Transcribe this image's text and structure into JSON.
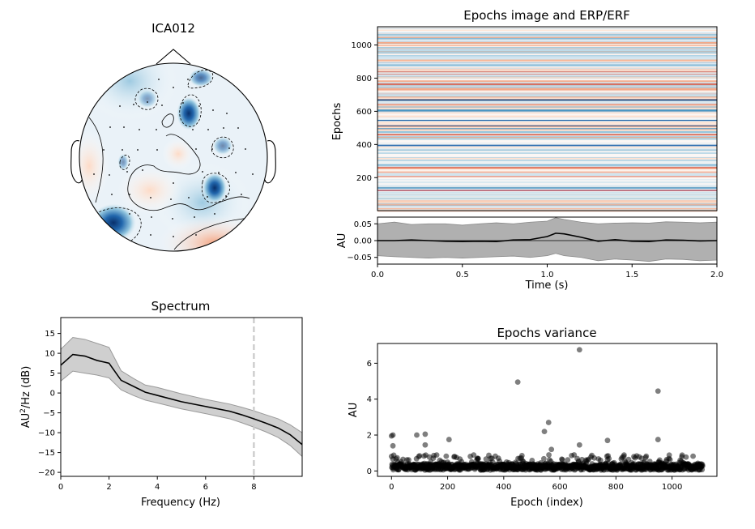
{
  "figure": {
    "topomap": {
      "title": "ICA012"
    },
    "epochs_image": {
      "title": "Epochs image and ERP/ERF",
      "ylabel": "Epochs"
    },
    "erp": {
      "ylabel": "AU",
      "xlabel": "Time (s)"
    },
    "spectrum": {
      "title": "Spectrum",
      "xlabel": "Frequency (Hz)",
      "ylabel_prefix": "AU",
      "ylabel_sup": "2",
      "ylabel_suffix": "/Hz (dB)"
    },
    "variance": {
      "title": "Epochs variance",
      "xlabel": "Epoch (index)",
      "ylabel": "AU"
    }
  },
  "colors": {
    "positive": "#d6604d",
    "negative": "#2166ac",
    "mean_line": "#000000",
    "band": "#b0b0b0",
    "marker": "#000000",
    "vline": "#c8c8c8"
  },
  "chart_data": [
    {
      "type": "heatmap",
      "name": "epochs-image",
      "title": "Epochs image and ERP/ERF",
      "ylabel": "Epochs",
      "ylim": [
        1,
        1110
      ],
      "yticks": [
        200,
        400,
        600,
        800,
        1000
      ],
      "colormap": "RdBu_r"
    },
    {
      "type": "line",
      "name": "erp",
      "xlabel": "Time (s)",
      "ylabel": "AU",
      "xlim": [
        0,
        2
      ],
      "ylim": [
        -0.07,
        0.07
      ],
      "xticks": [
        0.0,
        0.5,
        1.0,
        1.5,
        2.0
      ],
      "yticks": [
        0.05,
        0.0,
        -0.05
      ],
      "x": [
        0.0,
        0.1,
        0.2,
        0.3,
        0.4,
        0.5,
        0.6,
        0.7,
        0.8,
        0.9,
        1.0,
        1.05,
        1.1,
        1.2,
        1.3,
        1.4,
        1.5,
        1.6,
        1.7,
        1.8,
        1.9,
        2.0
      ],
      "mean": [
        0.0,
        0.0,
        0.002,
        0.0,
        -0.002,
        -0.003,
        -0.002,
        -0.003,
        0.002,
        0.003,
        0.012,
        0.022,
        0.02,
        0.01,
        -0.002,
        0.003,
        -0.002,
        -0.003,
        0.002,
        0.001,
        -0.001,
        0.0
      ],
      "upper": [
        0.05,
        0.055,
        0.048,
        0.05,
        0.05,
        0.046,
        0.05,
        0.053,
        0.05,
        0.055,
        0.058,
        0.068,
        0.063,
        0.055,
        0.05,
        0.052,
        0.053,
        0.052,
        0.056,
        0.055,
        0.053,
        0.055
      ],
      "lower": [
        -0.045,
        -0.048,
        -0.05,
        -0.052,
        -0.05,
        -0.052,
        -0.05,
        -0.048,
        -0.046,
        -0.05,
        -0.045,
        -0.038,
        -0.045,
        -0.05,
        -0.06,
        -0.055,
        -0.058,
        -0.062,
        -0.055,
        -0.056,
        -0.06,
        -0.058
      ]
    },
    {
      "type": "line",
      "name": "spectrum",
      "title": "Spectrum",
      "xlabel": "Frequency (Hz)",
      "ylabel": "AU²/Hz (dB)",
      "xlim": [
        0,
        10
      ],
      "ylim": [
        -21,
        19
      ],
      "xticks": [
        0,
        2,
        4,
        6,
        8
      ],
      "yticks": [
        15,
        10,
        5,
        0,
        -5,
        -10,
        -15,
        -20
      ],
      "vline_x": 8,
      "x": [
        0,
        0.5,
        1,
        1.5,
        2,
        2.5,
        3,
        3.5,
        4,
        5,
        6,
        7,
        7.5,
        8,
        8.5,
        9,
        9.5,
        10
      ],
      "mean": [
        7,
        9.7,
        9.3,
        8.2,
        7.5,
        3.2,
        1.7,
        0.2,
        -0.6,
        -2.2,
        -3.4,
        -4.6,
        -5.5,
        -6.5,
        -7.6,
        -8.8,
        -10.5,
        -13
      ],
      "upper": [
        11,
        14,
        13.5,
        12.5,
        11.5,
        5.6,
        3.7,
        2,
        1.4,
        -0.2,
        -1.6,
        -2.8,
        -3.6,
        -4.5,
        -5.5,
        -6.5,
        -8,
        -10
      ],
      "lower": [
        3,
        5.5,
        5,
        4.5,
        3.8,
        0.8,
        -0.6,
        -1.8,
        -2.5,
        -4,
        -5.2,
        -6.5,
        -7.5,
        -8.6,
        -9.8,
        -11.2,
        -13.2,
        -16
      ]
    },
    {
      "type": "scatter",
      "name": "epochs-variance",
      "title": "Epochs variance",
      "xlabel": "Epoch (index)",
      "ylabel": "AU",
      "xlim": [
        -50,
        1160
      ],
      "ylim": [
        -0.3,
        7.1
      ],
      "xticks": [
        0,
        200,
        400,
        600,
        800,
        1000
      ],
      "yticks": [
        0,
        2,
        4,
        6
      ],
      "outliers": [
        [
          670,
          6.75
        ],
        [
          450,
          4.95
        ],
        [
          950,
          4.45
        ],
        [
          560,
          2.7
        ],
        [
          545,
          2.2
        ],
        [
          5,
          2.0
        ],
        [
          0,
          1.95
        ],
        [
          120,
          2.05
        ],
        [
          90,
          2.0
        ],
        [
          205,
          1.75
        ],
        [
          950,
          1.75
        ],
        [
          770,
          1.7
        ],
        [
          570,
          1.2
        ],
        [
          5,
          1.4
        ],
        [
          120,
          1.45
        ],
        [
          670,
          1.45
        ]
      ]
    }
  ]
}
